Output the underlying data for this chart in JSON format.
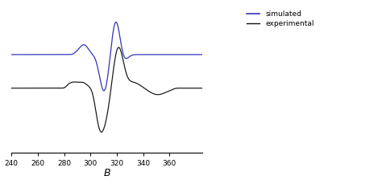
{
  "xlim": [
    240,
    385
  ],
  "xticks": [
    240,
    260,
    280,
    300,
    320,
    340,
    360
  ],
  "xlabel": "B",
  "background_color": "#ffffff",
  "simulated_color": "#3333bb",
  "experimental_color": "#111111",
  "legend_labels": [
    "simulated",
    "experimental"
  ],
  "figsize": [
    4.74,
    2.29
  ],
  "dpi": 100
}
